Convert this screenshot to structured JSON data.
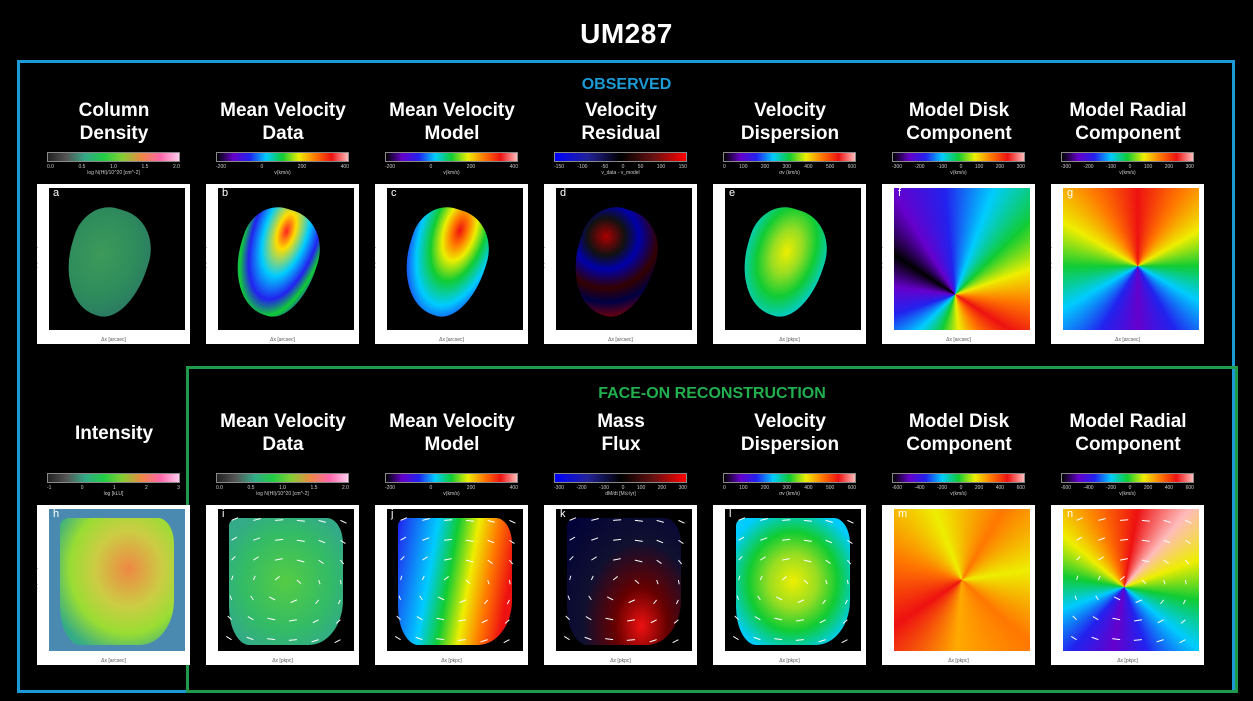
{
  "title": "UM287",
  "observed_label": "OBSERVED",
  "faceon_label": "FACE-ON RECONSTRUCTION",
  "colors": {
    "observed_border": "#1b9ad6",
    "faceon_border": "#1e9a4a"
  },
  "top_row": [
    {
      "title_line1": "Column",
      "title_line2": "Density",
      "label": "a",
      "cbar_ticks": [
        "0.0",
        "0.5",
        "1.0",
        "1.5",
        "2.0"
      ],
      "cbar_unit": "log N(HI)/10^20 [cm^-2]",
      "xlabel": "Δx [arcsec]",
      "ylabel": "Δy [arcsec]"
    },
    {
      "title_line1": "Mean Velocity",
      "title_line2": "Data",
      "label": "b",
      "cbar_ticks": [
        "-200",
        "0",
        "200",
        "400"
      ],
      "cbar_unit": "v(km/s)",
      "xlabel": "Δx [arcsec]",
      "ylabel": "Δy [arcsec]"
    },
    {
      "title_line1": "Mean Velocity",
      "title_line2": "Model",
      "label": "c",
      "cbar_ticks": [
        "-200",
        "0",
        "200",
        "400"
      ],
      "cbar_unit": "v(km/s)",
      "xlabel": "Δx [arcsec]",
      "ylabel": "Δy [arcsec]"
    },
    {
      "title_line1": "Velocity",
      "title_line2": "Residual",
      "label": "d",
      "cbar_ticks": [
        "-150",
        "-100",
        "-50",
        "0",
        "50",
        "100",
        "150"
      ],
      "cbar_unit": "v_data - v_model",
      "xlabel": "Δx [arcsec]",
      "ylabel": "Δy [arcsec]"
    },
    {
      "title_line1": "Velocity",
      "title_line2": "Dispersion",
      "label": "e",
      "cbar_ticks": [
        "0",
        "100",
        "200",
        "300",
        "400",
        "500",
        "600"
      ],
      "cbar_unit": "σv (km/s)",
      "xlabel": "Δx [pkpc]",
      "ylabel": "Δy [pkpc]"
    },
    {
      "title_line1": "Model Disk",
      "title_line2": "Component",
      "label": "f",
      "cbar_ticks": [
        "-300",
        "-200",
        "-100",
        "0",
        "100",
        "200",
        "300"
      ],
      "cbar_unit": "v(km/s)",
      "xlabel": "Δx [arcsec]",
      "ylabel": "Δy [arcsec]"
    },
    {
      "title_line1": "Model Radial",
      "title_line2": "Component",
      "label": "g",
      "cbar_ticks": [
        "-300",
        "-200",
        "-100",
        "0",
        "100",
        "200",
        "300"
      ],
      "cbar_unit": "v(km/s)",
      "xlabel": "Δx [arcsec]",
      "ylabel": "Δy [arcsec]"
    }
  ],
  "bottom_row": [
    {
      "title_line1": "Intensity",
      "title_line2": "",
      "label": "h",
      "cbar_ticks": [
        "-1",
        "0",
        "1",
        "2",
        "3"
      ],
      "cbar_unit": "log [kLU]",
      "xlabel": "Δx [arcsec]",
      "ylabel": "Δy [arcsec]"
    },
    {
      "title_line1": "Mean Velocity",
      "title_line2": "Data",
      "label": "i",
      "cbar_ticks": [
        "0.0",
        "0.5",
        "1.0",
        "1.5",
        "2.0"
      ],
      "cbar_unit": "log N(HI)/10^20 [cm^-2]",
      "xlabel": "Δx [pkpc]",
      "ylabel": "Δy [pkpc]"
    },
    {
      "title_line1": "Mean Velocity",
      "title_line2": "Model",
      "label": "j",
      "cbar_ticks": [
        "-200",
        "0",
        "200",
        "400"
      ],
      "cbar_unit": "v(km/s)",
      "xlabel": "Δx [pkpc]",
      "ylabel": "Δy [pkpc]"
    },
    {
      "title_line1": "Mass",
      "title_line2": "Flux",
      "label": "k",
      "cbar_ticks": [
        "-300",
        "-200",
        "-100",
        "0",
        "100",
        "200",
        "300"
      ],
      "cbar_unit": "dM/dt [M⊙/yr]",
      "xlabel": "Δx [pkpc]",
      "ylabel": "Δy [pkpc]"
    },
    {
      "title_line1": "Velocity",
      "title_line2": "Dispersion",
      "label": "l",
      "cbar_ticks": [
        "0",
        "100",
        "200",
        "300",
        "400",
        "500",
        "600"
      ],
      "cbar_unit": "σv (km/s)",
      "xlabel": "Δx [pkpc]",
      "ylabel": "Δy [pkpc]"
    },
    {
      "title_line1": "Model Disk",
      "title_line2": "Component",
      "label": "m",
      "cbar_ticks": [
        "-600",
        "-400",
        "-200",
        "0",
        "200",
        "400",
        "600"
      ],
      "cbar_unit": "v(km/s)",
      "xlabel": "Δx [pkpc]",
      "ylabel": "Δy [pkpc]"
    },
    {
      "title_line1": "Model Radial",
      "title_line2": "Component",
      "label": "n",
      "cbar_ticks": [
        "-600",
        "-400",
        "-200",
        "0",
        "200",
        "400",
        "600"
      ],
      "cbar_unit": "v(km/s)",
      "xlabel": "Δx [pkpc]",
      "ylabel": "Δy [pkpc]"
    }
  ]
}
